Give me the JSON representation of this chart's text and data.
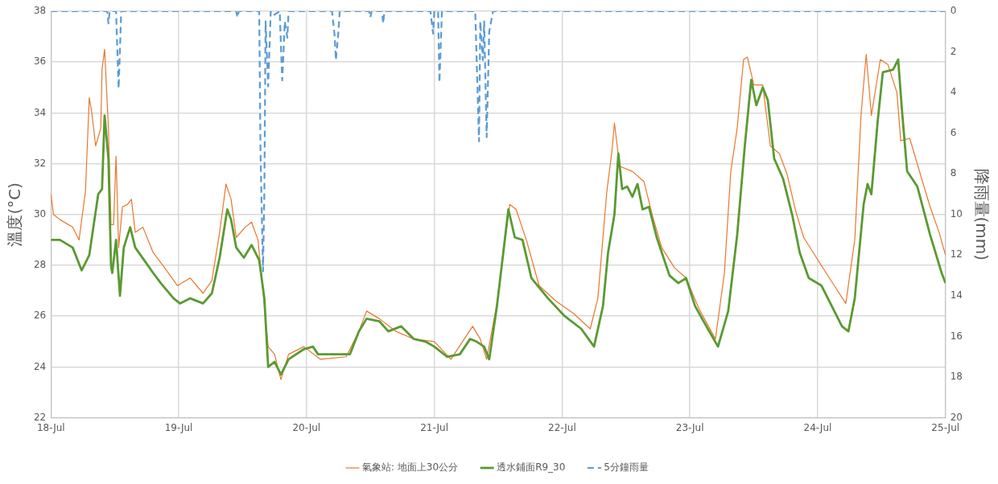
{
  "chart_data": {
    "type": "line",
    "ylabel": "溫度(°C)",
    "y2label": "降雨量(mm)",
    "legend": "bottom",
    "grid": true,
    "marker": "none",
    "xlim": [
      "--07-18",
      "--07-25"
    ],
    "xticks": [
      {
        "value": "--07-18",
        "label": "18-Jul"
      },
      {
        "value": "--07-19",
        "label": "19-Jul"
      },
      {
        "value": "--07-20",
        "label": "20-Jul"
      },
      {
        "value": "--07-21",
        "label": "21-Jul"
      },
      {
        "value": "--07-22",
        "label": "22-Jul"
      },
      {
        "value": "--07-23",
        "label": "23-Jul"
      },
      {
        "value": "--07-24",
        "label": "24-Jul"
      },
      {
        "value": "--07-25",
        "label": "25-Jul"
      }
    ],
    "ylim": [
      22,
      38
    ],
    "yticks": [
      22,
      24,
      26,
      28,
      30,
      32,
      34,
      36,
      38
    ],
    "y2lim": [
      20,
      0
    ],
    "y2ticks": [
      0,
      2,
      4,
      6,
      8,
      10,
      12,
      14,
      16,
      18,
      20
    ],
    "series": [
      {
        "name": "氣象站: 地面上30公分",
        "color": "#e8772e",
        "line_style": "solid",
        "x": [
          "--07-18T00:00",
          "--07-18T00:29",
          "--07-18T01:41",
          "--07-18T04:05",
          "--07-18T05:17",
          "--07-18T06:29",
          "--07-18T07:12",
          "--07-18T07:41",
          "--07-18T08:24",
          "--07-18T09:22",
          "--07-18T09:36",
          "--07-18T10:05",
          "--07-18T10:48",
          "--07-18T11:17",
          "--07-18T11:46",
          "--07-18T12:14",
          "--07-18T12:43",
          "--07-18T13:26",
          "--07-18T14:24",
          "--07-18T15:07",
          "--07-18T15:50",
          "--07-18T17:17",
          "--07-18T19:12",
          "--07-18T21:22",
          "--07-18T23:46",
          "--07-19T02:10",
          "--07-19T04:34",
          "--07-19T06:14",
          "--07-19T07:41",
          "--07-19T08:53",
          "--07-19T09:50",
          "--07-19T10:48",
          "--07-19T12:29",
          "--07-19T13:41",
          "--07-19T14:53",
          "--07-19T16:05",
          "--07-19T16:48",
          "--07-19T18:00",
          "--07-19T19:12",
          "--07-19T20:38",
          "--07-19T23:31",
          "--07-20T02:38",
          "--07-20T07:26",
          "--07-20T09:50",
          "--07-20T11:17",
          "--07-20T13:41",
          "--07-20T16:48",
          "--07-20T20:10",
          "--07-21T00:00",
          "--07-21T03:07",
          "--07-21T07:12",
          "--07-21T08:38",
          "--07-21T09:50",
          "--07-21T11:46",
          "--07-21T14:10",
          "--07-21T15:22",
          "--07-21T17:17",
          "--07-21T19:41",
          "--07-21T22:48",
          "--07-22T02:10",
          "--07-22T05:17",
          "--07-22T06:43",
          "--07-22T08:24",
          "--07-22T09:22",
          "--07-22T09:50",
          "--07-22T10:48",
          "--07-22T13:12",
          "--07-22T15:22",
          "--07-22T17:02",
          "--07-22T18:43",
          "--07-22T21:07",
          "--07-22T23:17",
          "--07-23T01:41",
          "--07-23T04:48",
          "--07-23T06:29",
          "--07-23T07:41",
          "--07-23T08:53",
          "--07-23T10:05",
          "--07-23T10:48",
          "--07-23T12:00",
          "--07-23T13:41",
          "--07-23T15:07",
          "--07-23T16:48",
          "--07-23T18:14",
          "--07-23T19:55",
          "--07-23T21:22",
          "--07-23T23:46",
          "--07-24T03:07",
          "--07-24T05:17",
          "--07-24T06:58",
          "--07-24T08:10",
          "--07-24T09:07",
          "--07-24T10:05",
          "--07-24T11:46",
          "--07-24T13:12",
          "--07-24T14:53",
          "--07-24T15:36",
          "--07-24T17:17",
          "--07-24T19:41",
          "--07-24T21:07",
          "--07-24T22:48",
          "--07-25T00:00"
        ],
        "values": [
          30.8,
          30.0,
          29.8,
          29.5,
          29.0,
          30.9,
          34.6,
          34.0,
          32.7,
          33.4,
          35.7,
          36.5,
          33.4,
          29.6,
          29.6,
          32.3,
          28.7,
          30.3,
          30.4,
          30.6,
          29.3,
          29.5,
          28.5,
          27.9,
          27.2,
          27.5,
          26.9,
          27.4,
          29.3,
          31.2,
          30.6,
          29.1,
          29.5,
          29.7,
          29.0,
          26.4,
          24.8,
          24.5,
          23.5,
          24.5,
          24.8,
          24.3,
          24.4,
          25.4,
          26.2,
          25.9,
          25.4,
          25.1,
          25.0,
          24.3,
          25.6,
          25.1,
          24.3,
          26.5,
          30.4,
          30.2,
          29.0,
          27.2,
          26.6,
          26.1,
          25.5,
          26.7,
          30.9,
          32.5,
          33.6,
          31.9,
          31.7,
          31.3,
          29.9,
          28.7,
          27.9,
          27.5,
          26.3,
          25.1,
          27.7,
          31.7,
          33.4,
          36.1,
          36.2,
          35.1,
          35.1,
          32.7,
          32.4,
          31.6,
          30.1,
          29.1,
          28.3,
          27.2,
          26.5,
          29.0,
          34.0,
          36.3,
          33.9,
          36.1,
          35.9,
          34.8,
          32.9,
          33.0,
          31.3,
          30.3,
          29.3,
          28.4
        ]
      },
      {
        "name": "透水鋪面R9_30",
        "color": "#5a9a32",
        "line_style": "solid",
        "x": [
          "--07-18T00:00",
          "--07-18T01:41",
          "--07-18T04:05",
          "--07-18T05:46",
          "--07-18T07:12",
          "--07-18T08:53",
          "--07-18T09:36",
          "--07-18T10:05",
          "--07-18T10:48",
          "--07-18T11:17",
          "--07-18T11:31",
          "--07-18T12:14",
          "--07-18T12:58",
          "--07-18T13:41",
          "--07-18T14:53",
          "--07-18T15:50",
          "--07-18T17:31",
          "--07-18T19:12",
          "--07-18T20:38",
          "--07-18T23:02",
          "--07-19T00:14",
          "--07-19T02:10",
          "--07-19T04:34",
          "--07-19T06:14",
          "--07-19T07:41",
          "--07-19T09:07",
          "--07-19T09:50",
          "--07-19T10:48",
          "--07-19T12:14",
          "--07-19T13:41",
          "--07-19T15:07",
          "--07-19T16:05",
          "--07-19T16:48",
          "--07-19T18:00",
          "--07-19T19:12",
          "--07-19T20:38",
          "--07-19T23:31",
          "--07-20T01:12",
          "--07-20T02:10",
          "--07-20T05:46",
          "--07-20T08:10",
          "--07-20T09:50",
          "--07-20T11:17",
          "--07-20T13:41",
          "--07-20T15:22",
          "--07-20T17:46",
          "--07-20T20:10",
          "--07-20T22:19",
          "--07-21T00:00",
          "--07-21T02:24",
          "--07-21T04:48",
          "--07-21T06:43",
          "--07-21T07:55",
          "--07-21T09:22",
          "--07-21T10:19",
          "--07-21T11:46",
          "--07-21T13:55",
          "--07-21T15:07",
          "--07-21T16:34",
          "--07-21T18:14",
          "--07-21T21:22",
          "--07-22T00:29",
          "--07-22T03:36",
          "--07-22T06:00",
          "--07-22T07:41",
          "--07-22T08:38",
          "--07-22T09:50",
          "--07-22T10:34",
          "--07-22T11:17",
          "--07-22T12:14",
          "--07-22T13:12",
          "--07-22T14:10",
          "--07-22T15:07",
          "--07-22T16:19",
          "--07-22T17:46",
          "--07-22T20:10",
          "--07-22T21:50",
          "--07-22T23:17",
          "--07-23T00:58",
          "--07-23T03:22",
          "--07-23T05:17",
          "--07-23T07:12",
          "--07-23T08:53",
          "--07-23T10:19",
          "--07-23T11:31",
          "--07-23T12:29",
          "--07-23T13:41",
          "--07-23T14:38",
          "--07-23T15:50",
          "--07-23T17:31",
          "--07-23T19:12",
          "--07-23T20:38",
          "--07-23T22:19",
          "--07-24T00:43",
          "--07-24T03:07",
          "--07-24T04:34",
          "--07-24T05:46",
          "--07-24T06:58",
          "--07-24T08:38",
          "--07-24T09:22",
          "--07-24T10:05",
          "--07-24T11:17",
          "--07-24T12:14",
          "--07-24T14:10",
          "--07-24T15:07",
          "--07-24T15:50",
          "--07-24T16:48",
          "--07-24T18:43",
          "--07-24T21:07",
          "--07-24T23:17",
          "--07-25T00:00"
        ],
        "values": [
          29.0,
          29.0,
          28.7,
          27.8,
          28.4,
          30.8,
          31.0,
          33.9,
          32.2,
          28.0,
          27.7,
          29.0,
          26.8,
          28.7,
          29.5,
          28.7,
          28.2,
          27.7,
          27.3,
          26.7,
          26.5,
          26.7,
          26.5,
          26.9,
          28.3,
          30.2,
          29.8,
          28.7,
          28.3,
          28.8,
          28.2,
          26.7,
          24.0,
          24.2,
          23.7,
          24.3,
          24.7,
          24.8,
          24.5,
          24.5,
          24.5,
          25.4,
          25.9,
          25.8,
          25.4,
          25.6,
          25.1,
          25.0,
          24.8,
          24.4,
          24.5,
          25.1,
          25.0,
          24.8,
          24.3,
          26.4,
          30.2,
          29.1,
          29.0,
          27.5,
          26.7,
          26.0,
          25.5,
          24.8,
          26.4,
          28.5,
          30.0,
          32.4,
          31.0,
          31.1,
          30.7,
          31.2,
          30.2,
          30.3,
          29.1,
          27.6,
          27.3,
          27.5,
          26.4,
          25.5,
          24.8,
          26.2,
          29.2,
          32.7,
          35.3,
          34.3,
          35.0,
          34.5,
          32.2,
          31.4,
          30.0,
          28.5,
          27.5,
          27.2,
          26.2,
          25.6,
          25.4,
          26.7,
          30.4,
          31.2,
          30.8,
          33.7,
          35.6,
          35.7,
          36.1,
          34.1,
          31.7,
          31.1,
          29.2,
          27.7,
          27.3
        ]
      },
      {
        "name": "5分鐘雨量",
        "color": "#5b9bd5",
        "line_style": "dashed",
        "axis": "y2",
        "x": [
          "--07-18T00:00",
          "--07-18T10:34",
          "--07-18T10:48",
          "--07-18T11:02",
          "--07-18T12:14",
          "--07-18T12:43",
          "--07-18T13:12",
          "--07-19T10:48",
          "--07-19T11:02",
          "--07-19T11:17",
          "--07-19T15:07",
          "--07-19T15:22",
          "--07-19T15:50",
          "--07-19T16:05",
          "--07-19T16:19",
          "--07-19T16:48",
          "--07-19T17:17",
          "--07-19T17:46",
          "--07-19T18:58",
          "--07-19T19:26",
          "--07-19T19:41",
          "--07-19T19:55",
          "--07-19T20:24",
          "--07-19T20:38",
          "--07-20T04:48",
          "--07-20T05:17",
          "--07-20T05:31",
          "--07-20T06:00",
          "--07-20T06:14",
          "--07-20T11:46",
          "--07-20T12:00",
          "--07-20T12:14",
          "--07-20T14:10",
          "--07-20T14:24",
          "--07-20T14:38",
          "--07-20T23:17",
          "--07-20T23:46",
          "--07-21T00:00",
          "--07-21T00:43",
          "--07-21T00:58",
          "--07-21T01:26",
          "--07-21T07:41",
          "--07-21T07:55",
          "--07-21T08:24",
          "--07-21T08:38",
          "--07-21T09:07",
          "--07-21T09:22",
          "--07-21T09:50",
          "--07-21T10:19",
          "--07-21T11:02",
          "--07-25T00:00"
        ],
        "values": [
          0,
          0,
          0.6,
          0,
          0,
          3.8,
          0,
          0,
          0.3,
          0,
          0,
          7.0,
          12.8,
          8.9,
          0.5,
          3.7,
          0,
          0.2,
          0,
          3.4,
          2.0,
          0.5,
          1.3,
          0,
          0,
          1.2,
          2.4,
          1.0,
          0,
          0,
          0.3,
          0,
          0,
          0.6,
          0,
          0,
          1.1,
          0,
          0,
          3.5,
          0,
          0,
          2.0,
          6.4,
          0.5,
          2.4,
          0.5,
          6.2,
          1.0,
          0,
          0
        ]
      }
    ]
  }
}
